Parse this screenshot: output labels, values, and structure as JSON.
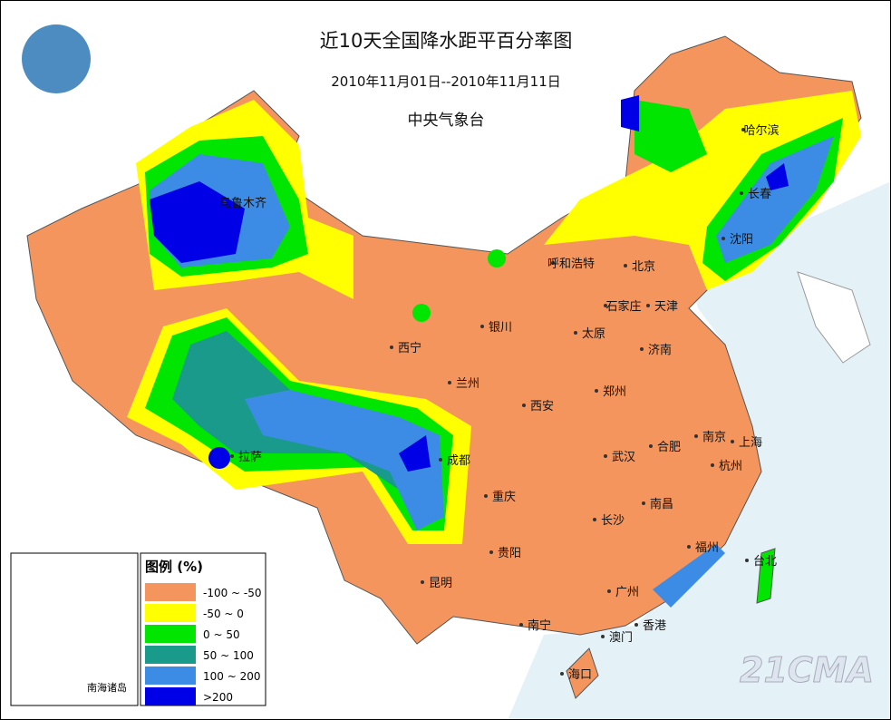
{
  "header": {
    "title": "近10天全国降水距平百分率图",
    "date_range": "2010年11月01日--2010年11月11日",
    "agency": "中央气象台"
  },
  "legend": {
    "title": "图例 (%)",
    "items": [
      {
        "label": "-100 ~ -50",
        "color": "#f5955e"
      },
      {
        "label": "-50 ~ 0",
        "color": "#ffff00"
      },
      {
        "label": "0 ~ 50",
        "color": "#00e600"
      },
      {
        "label": "50 ~ 100",
        "color": "#1a9a8a"
      },
      {
        "label": "100 ~ 200",
        "color": "#3c8ce6"
      },
      {
        "label": ">200",
        "color": "#0000e6"
      }
    ]
  },
  "cities": [
    "哈尔滨",
    "长春",
    "沈阳",
    "乌鲁木齐",
    "呼和浩特",
    "北京",
    "石家庄",
    "天津",
    "银川",
    "太原",
    "西宁",
    "济南",
    "兰州",
    "郑州",
    "西安",
    "合肥",
    "南京",
    "上海",
    "拉萨",
    "成都",
    "武汉",
    "杭州",
    "重庆",
    "长沙",
    "南昌",
    "福州",
    "台北",
    "贵阳",
    "昆明",
    "广州",
    "南宁",
    "香港",
    "澳门",
    "海口"
  ],
  "inset_label": "南海诸岛",
  "watermark": "21CMA"
}
